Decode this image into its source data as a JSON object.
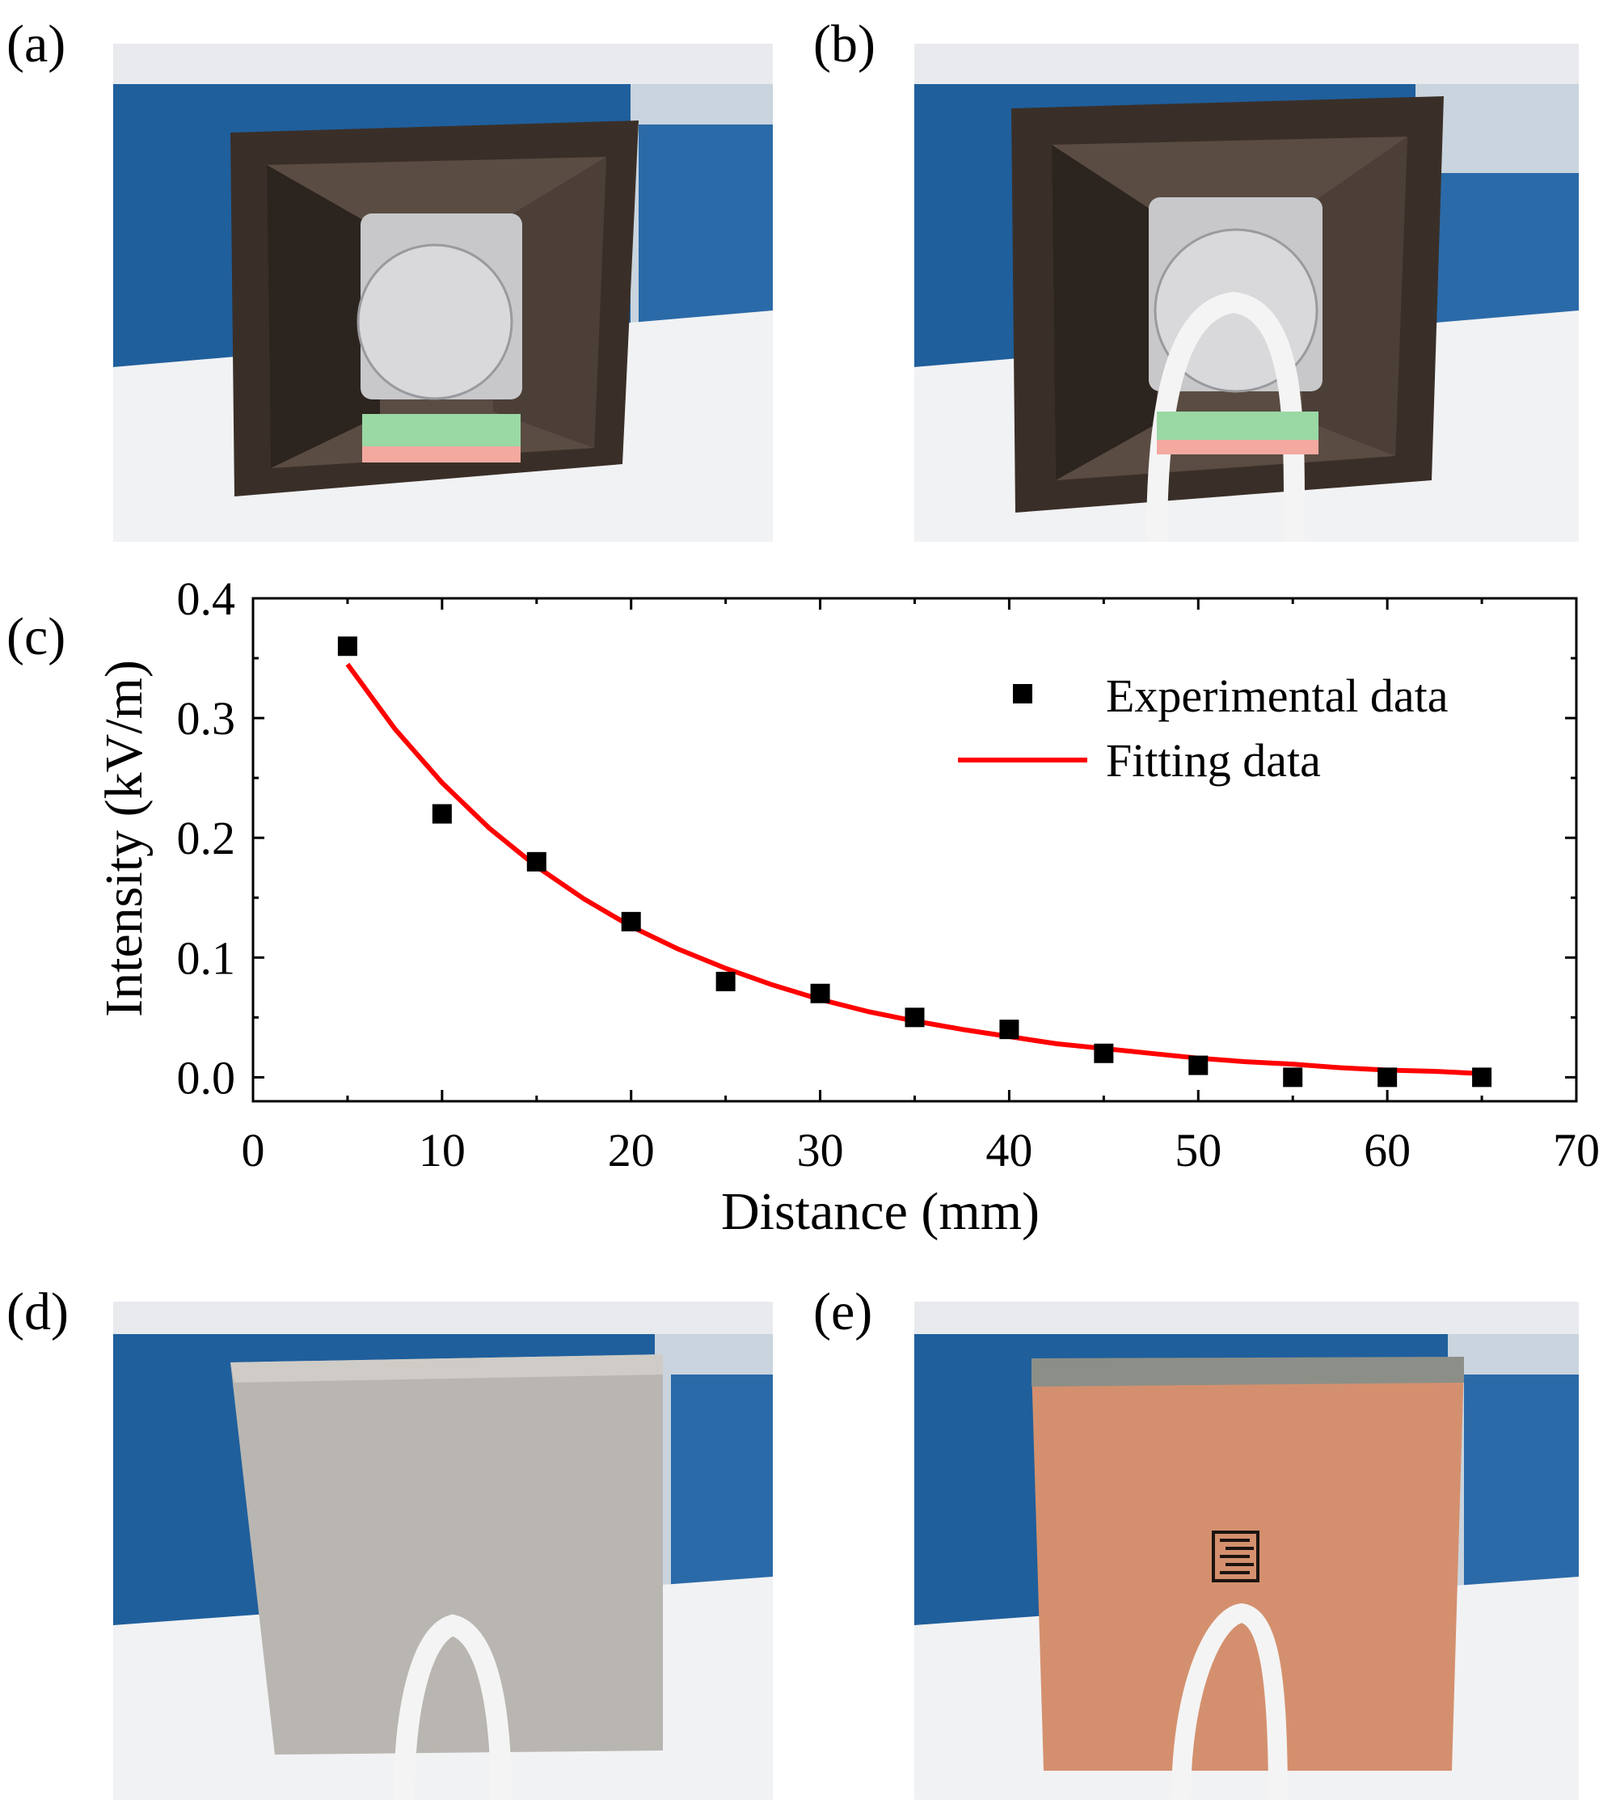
{
  "panels": {
    "a": "(a)",
    "b": "(b)",
    "c": "(c)",
    "d": "(d)",
    "e": "(e)"
  },
  "photos": {
    "a": {
      "description_icon": "open-metal-box-with-sensor-photo"
    },
    "b": {
      "description_icon": "open-metal-box-with-sensor-and-tube-photo"
    },
    "d": {
      "description_icon": "closed-steel-box-with-tube-photo"
    },
    "e": {
      "description_icon": "closed-copper-box-with-electrode-and-tube-photo"
    }
  },
  "colors": {
    "fit_line": "#ff0000",
    "marker": "#000000",
    "wall_blue": "#1f5f9c",
    "copper": "#d4906e",
    "steel": "#b9b6b1",
    "box_dark": "#3a2f28"
  },
  "chart_data": {
    "type": "scatter",
    "title": "",
    "xlabel": "Distance (mm)",
    "ylabel": "Intensity (kV/m)",
    "xlim": [
      0,
      70
    ],
    "ylim": [
      -0.02,
      0.4
    ],
    "xticks": [
      0,
      10,
      20,
      30,
      40,
      50,
      60,
      70
    ],
    "xtick_labels": [
      "0",
      "10",
      "20",
      "30",
      "40",
      "50",
      "60",
      "70"
    ],
    "yticks": [
      0.0,
      0.1,
      0.2,
      0.3,
      0.4
    ],
    "ytick_labels": [
      "0.0",
      "0.1",
      "0.2",
      "0.3",
      "0.4"
    ],
    "legend_position": "top-right",
    "series": [
      {
        "name": "Experimental data",
        "kind": "scatter",
        "marker": "square",
        "x": [
          5,
          10,
          15,
          20,
          25,
          30,
          35,
          40,
          45,
          50,
          55,
          60,
          65
        ],
        "y": [
          0.36,
          0.22,
          0.18,
          0.13,
          0.08,
          0.07,
          0.05,
          0.04,
          0.02,
          0.01,
          0.0,
          0.0,
          0.0
        ]
      },
      {
        "name": "Fitting data",
        "kind": "line",
        "x": [
          5,
          7.5,
          10,
          12.5,
          15,
          17.5,
          20,
          22.5,
          25,
          27.5,
          30,
          32.5,
          35,
          37.5,
          40,
          42.5,
          45,
          47.5,
          50,
          52.5,
          55,
          57.5,
          60,
          62.5,
          65
        ],
        "y": [
          0.345,
          0.291,
          0.246,
          0.208,
          0.176,
          0.149,
          0.126,
          0.107,
          0.091,
          0.077,
          0.065,
          0.055,
          0.047,
          0.04,
          0.034,
          0.028,
          0.024,
          0.02,
          0.016,
          0.013,
          0.011,
          0.008,
          0.006,
          0.005,
          0.003
        ]
      }
    ]
  }
}
